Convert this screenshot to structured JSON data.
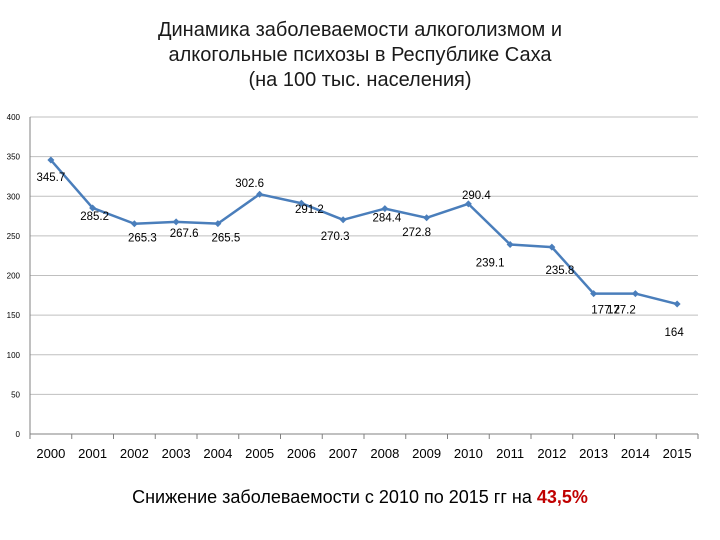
{
  "title_lines": [
    "Динамика заболеваемости алкоголизмом и",
    "алкогольные психозы в Республике Саха",
    "(на 100 тыс. населения)"
  ],
  "footer": {
    "text": "Снижение заболеваемости с 2010 по 2015 гг на ",
    "highlight": "43,5%",
    "highlight_color": "#c00000"
  },
  "chart_data": {
    "type": "line",
    "categories": [
      "2000",
      "2001",
      "2002",
      "2003",
      "2004",
      "2005",
      "2006",
      "2007",
      "2008",
      "2009",
      "2010",
      "2011",
      "2012",
      "2013",
      "2014",
      "2015"
    ],
    "series": [
      {
        "values": [
          345.7,
          285.2,
          265.3,
          267.6,
          265.5,
          302.6,
          291.2,
          270.3,
          284.4,
          272.8,
          290.4,
          239.1,
          235.8,
          177.2,
          177.2,
          164
        ],
        "labels": [
          "345.7",
          "285.2",
          "265.3",
          "267.6",
          "265.5",
          "302.6",
          "291.2",
          "270.3",
          "284.4",
          "272.8",
          "290.4",
          "239.1",
          "235.8",
          "177.2",
          "177.2",
          "164"
        ],
        "color": "#4a7ebb"
      }
    ],
    "ylim": [
      0,
      400
    ],
    "yticks": [
      "0",
      "50",
      "100",
      "150",
      "200",
      "250",
      "300",
      "350",
      "400"
    ],
    "grid": true,
    "legend": "none"
  }
}
